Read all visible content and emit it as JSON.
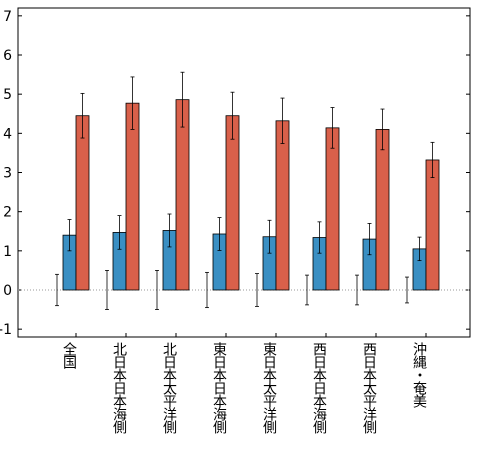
{
  "chart_data": {
    "type": "bar",
    "categories": [
      "全国",
      "北日本日本海側",
      "北日本太平洋側",
      "東日本日本海側",
      "東日本太平洋側",
      "西日本日本海側",
      "西日本太平洋側",
      "沖縄・奄美"
    ],
    "series": [
      {
        "color": "#000000",
        "values": [
          0,
          0,
          0,
          0,
          0,
          0,
          0,
          0
        ],
        "errors": [
          0.4,
          0.5,
          0.5,
          0.45,
          0.42,
          0.38,
          0.38,
          0.33
        ]
      },
      {
        "color": "#3a8fc3",
        "values": [
          1.4,
          1.47,
          1.52,
          1.43,
          1.36,
          1.34,
          1.3,
          1.05
        ],
        "errors": [
          0.4,
          0.43,
          0.42,
          0.42,
          0.42,
          0.4,
          0.4,
          0.3
        ]
      },
      {
        "color": "#d9604a",
        "values": [
          4.45,
          4.77,
          4.86,
          4.45,
          4.32,
          4.14,
          4.1,
          3.32
        ],
        "errors": [
          0.57,
          0.67,
          0.7,
          0.6,
          0.58,
          0.52,
          0.52,
          0.45
        ]
      }
    ],
    "ylim": [
      -1.2,
      7.2
    ],
    "yticks": [
      -1,
      0,
      1,
      2,
      3,
      4,
      5,
      6,
      7
    ],
    "zero_line": true
  }
}
